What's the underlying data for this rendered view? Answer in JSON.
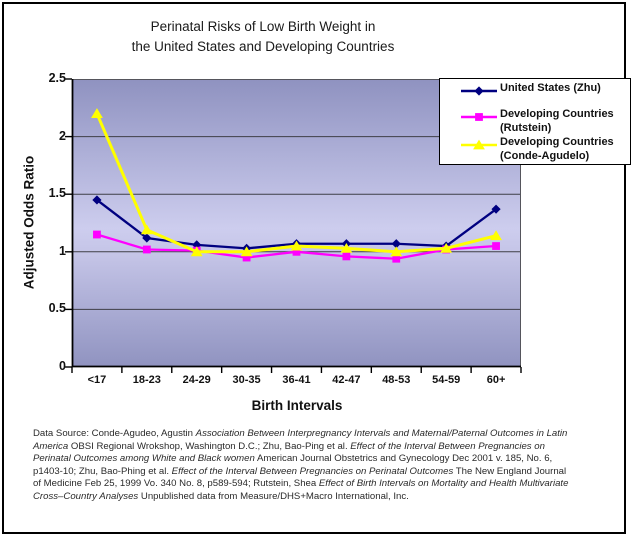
{
  "title": {
    "line1": "Perinatal Risks of Low Birth Weight in",
    "line2": "the United States and Developing Countries"
  },
  "y_axis": {
    "title": "Adjusted Odds Ratio"
  },
  "x_axis": {
    "title": "Birth Intervals"
  },
  "legend": {
    "entries": [
      {
        "lines": [
          "United States (Zhu)"
        ],
        "color": "#000080",
        "marker": "diamond"
      },
      {
        "lines": [
          "Developing Countries",
          "(Rutstein)"
        ],
        "color": "#FF00FF",
        "marker": "square"
      },
      {
        "lines": [
          "Developing Countries",
          "(Conde-Agudelo)"
        ],
        "color": "#FFFF00",
        "marker": "triangle"
      }
    ]
  },
  "chart_data": {
    "type": "line",
    "title": "Perinatal Risks of Low Birth Weight in the United States and Developing Countries",
    "xlabel": "Birth Intervals",
    "ylabel": "Adjusted Odds Ratio",
    "categories": [
      "<17",
      "18-23",
      "24-29",
      "30-35",
      "36-41",
      "42-47",
      "48-53",
      "54-59",
      "60+"
    ],
    "series": [
      {
        "name": "United States (Zhu)",
        "color": "#000080",
        "marker": "diamond",
        "values": [
          1.45,
          1.12,
          1.06,
          1.03,
          1.07,
          1.07,
          1.07,
          1.05,
          1.37
        ]
      },
      {
        "name": "Developing Countries (Rutstein)",
        "color": "#FF00FF",
        "marker": "square",
        "values": [
          1.15,
          1.02,
          1.01,
          0.95,
          1.0,
          0.96,
          0.94,
          1.02,
          1.05
        ]
      },
      {
        "name": "Developing Countries (Conde-Agudelo)",
        "color": "#FFFF00",
        "marker": "triangle",
        "values": [
          2.2,
          1.19,
          1.0,
          1.0,
          1.05,
          1.03,
          1.0,
          1.03,
          1.14
        ]
      }
    ],
    "ylim": [
      0,
      2.5
    ],
    "yticks": [
      "2.5",
      "2",
      "1.5",
      "1",
      "0.5",
      "0"
    ],
    "ytick_step": 0.5,
    "grid": true,
    "legend_position": "top-right"
  },
  "footer": {
    "lines": [
      [
        {
          "text": "Data Source: Conde-Agudeo, Agustin ",
          "italic": false
        },
        {
          "text": "Association Between Interpregnancy Intervals and Maternal/Paternal Outcomes in Latin",
          "italic": true
        }
      ],
      [
        {
          "text": "America",
          "italic": true
        },
        {
          "text": " OBSI Regional Wrokshop, Washington D.C.; Zhu, Bao-Ping et al. ",
          "italic": false
        },
        {
          "text": "Effect of the Interval Between Pregnancies on",
          "italic": true
        }
      ],
      [
        {
          "text": "Perinatal Outcomes among White and Black women",
          "italic": true
        },
        {
          "text": " American Journal Obstetrics and Gynecology Dec 2001 v. 185, No. 6,",
          "italic": false
        }
      ],
      [
        {
          "text": "p1403-10; Zhu, Bao-Phing et al. ",
          "italic": false
        },
        {
          "text": "Effect of the Interval Between Pregnancies on Perinatal Outcomes",
          "italic": true
        },
        {
          "text": " The New England Journal",
          "italic": false
        }
      ],
      [
        {
          "text": "of Medicine Feb 25, 1999 Vo. 340 No. 8, p589-594; Rutstein, Shea ",
          "italic": false
        },
        {
          "text": "Effect of Birth Intervals on Mortality and Health Multivariate",
          "italic": true
        }
      ],
      [
        {
          "text": "Cross–Country Analyses",
          "italic": true
        },
        {
          "text": " Unpublished data from Measure/DHS+Macro International, Inc.",
          "italic": false
        }
      ]
    ]
  },
  "colors": {
    "series_us": "#000080",
    "series_rutstein": "#FF00FF",
    "series_conde_agudelo": "#FFFF00",
    "gridline": "#3f3f46",
    "axis": "#000000",
    "plot_bg_dark": "#9093c0",
    "plot_bg_light": "#cdcdee",
    "frame_border": "#000000",
    "legend_bg": "#ffffff"
  }
}
